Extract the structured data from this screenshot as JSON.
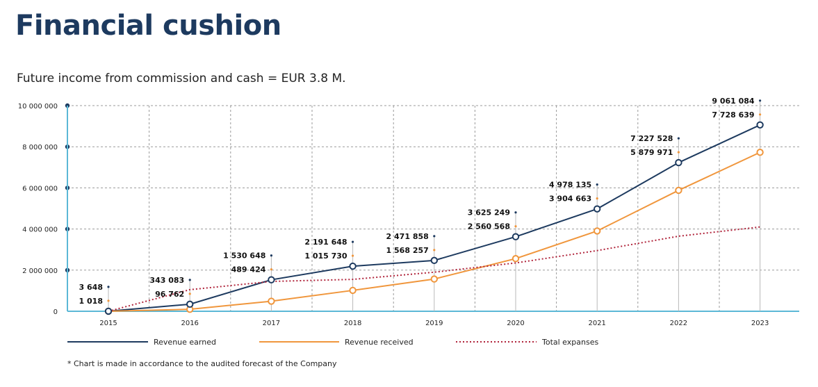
{
  "title": "Financial cushion",
  "subtitle": "Future income from commission and cash = EUR 3.8 M.",
  "note": "* Chart is made in accordance to the audited forecast of the Company",
  "chart_data": {
    "type": "line",
    "x": [
      "2015",
      "2016",
      "2017",
      "2018",
      "2019",
      "2020",
      "2021",
      "2022",
      "2023"
    ],
    "ylim": [
      0,
      10000000
    ],
    "yticks": [
      0,
      2000000,
      4000000,
      6000000,
      8000000,
      10000000
    ],
    "ytick_labels": [
      "0",
      "2 000 000",
      "4 000 000",
      "6 000 000",
      "8 000 000",
      "10 000 000"
    ],
    "grid": true,
    "legend_placement": "bottom",
    "series": [
      {
        "name": "Revenue earned",
        "color": "#1d3a5f",
        "style": "solid",
        "values": [
          3648,
          343083,
          1530648,
          2191648,
          2471858,
          3625249,
          4978135,
          7227528,
          9061084
        ],
        "labels": [
          "3 648",
          "343 083",
          "1 530 648",
          "2 191 648",
          "2 471 858",
          "3 625 249",
          "4 978 135",
          "7 227 528",
          "9 061 084"
        ]
      },
      {
        "name": "Revenue received",
        "color": "#f0963c",
        "style": "solid",
        "values": [
          1018,
          96762,
          489424,
          1015730,
          1568257,
          2560568,
          3904663,
          5879971,
          7728639
        ],
        "labels": [
          "1 018",
          "96 762",
          "489 424",
          "1 015 730",
          "1 568 257",
          "2 560 568",
          "3 904 663",
          "5 879 971",
          "7 728 639"
        ]
      },
      {
        "name": "Total expanses",
        "color": "#b0233a",
        "style": "dotted",
        "values": [
          0,
          1050000,
          1450000,
          1550000,
          1900000,
          2350000,
          2950000,
          3650000,
          4100000
        ]
      }
    ]
  }
}
